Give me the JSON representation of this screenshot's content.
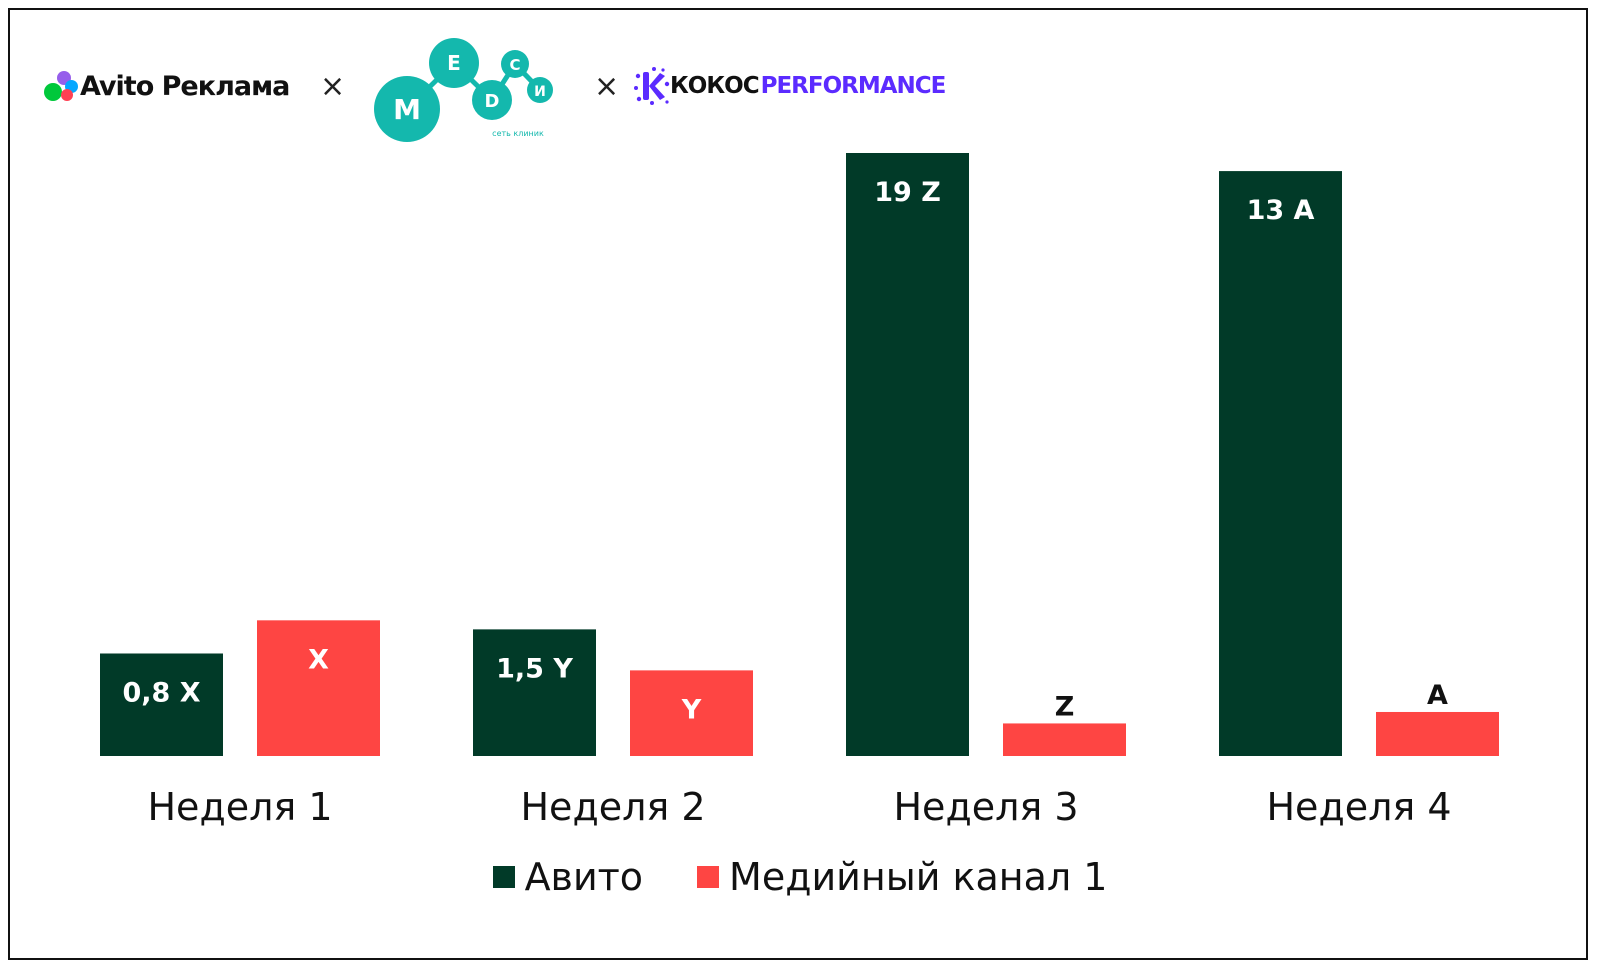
{
  "logos": {
    "avito": "Avito Реклама",
    "medsi_letters": [
      "М",
      "Е",
      "D",
      "С",
      "И"
    ],
    "medsi_sub": "сеть клиник",
    "kokos_part1": "КОКОС",
    "kokos_part2": "PERFORMANCE",
    "separator": "×"
  },
  "colors": {
    "avito_bar": "#013a28",
    "media_bar": "#fe4543",
    "medsi_teal": "#14b8ad",
    "kokos_purple": "#5b2bff"
  },
  "chart_data": {
    "type": "bar",
    "categories": [
      "Неделя 1",
      "Неделя 2",
      "Неделя 3",
      "Неделя 4"
    ],
    "series": [
      {
        "name": "Авито",
        "color": "#013a28",
        "values": [
          17,
          21,
          100,
          97
        ],
        "labels": [
          "0,8 X",
          "1,5 Y",
          "19 Z",
          "13 A"
        ]
      },
      {
        "name": "Медийный канал 1",
        "color": "#fe4543",
        "values": [
          22.5,
          14.2,
          5.4,
          7.3
        ],
        "labels": [
          "X",
          "Y",
          "Z",
          "A"
        ]
      }
    ],
    "ylim": [
      0,
      100
    ],
    "grid": false,
    "y_axis_visible": false,
    "legend": "bottom-center",
    "title": "",
    "xlabel": "",
    "ylabel": ""
  }
}
